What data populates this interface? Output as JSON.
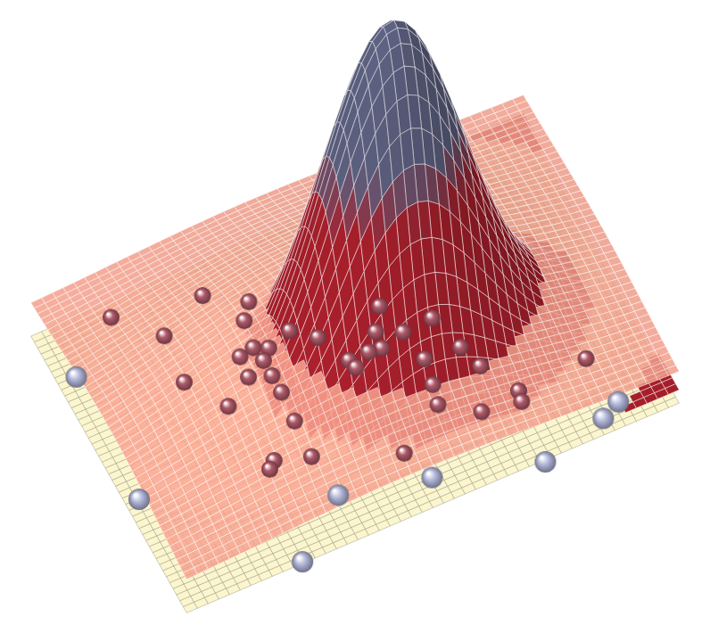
{
  "chart_data": {
    "type": "surface3d",
    "xlim": [
      -1,
      1
    ],
    "ylim": [
      -1,
      1
    ],
    "grid": true,
    "tick_labels": false,
    "surfaces": [
      {
        "color": "#fdf7cf",
        "offset": -0.04,
        "height": 0.04,
        "center": [
          0.3,
          0.3
        ],
        "spread": 0.5
      },
      {
        "color": "#f4a08c",
        "offset": 0.05,
        "height": 0.2,
        "center": [
          -0.1,
          0
        ],
        "spread": 0.55
      },
      {
        "color": "#5b5f7e",
        "offset": 0,
        "height": 1.0,
        "center": [
          0.12,
          -0.1
        ],
        "spread": 0.28
      }
    ],
    "series": [
      {
        "color": "#b05a6a",
        "marker": "sphere",
        "x": [
          -0.82,
          -0.48,
          -0.34,
          -0.68,
          -0.39,
          -0.26,
          -0.18,
          0.08,
          0.23,
          0.02,
          0.11,
          0.01,
          -0.04,
          -0.12,
          -0.11,
          -0.47,
          -0.41,
          -0.36,
          -0.4,
          -0.48,
          -0.4,
          -0.4,
          -0.6,
          -0.7,
          0.13,
          0.27,
          0.3,
          0.11,
          0.09,
          0.22,
          0.38,
          0.37,
          0.66,
          -0.41,
          -0.55,
          -0.42,
          -0.58,
          -0.11
        ],
        "y": [
          0.54,
          0.44,
          0.29,
          0.3,
          0.19,
          0.02,
          -0.09,
          -0.06,
          -0.26,
          -0.2,
          -0.27,
          -0.31,
          -0.3,
          -0.3,
          -0.36,
          -0.01,
          0.01,
          -0.03,
          -0.09,
          -0.15,
          -0.2,
          -0.32,
          -0.27,
          -0.02,
          -0.48,
          -0.5,
          -0.66,
          -0.65,
          -0.78,
          -0.93,
          -0.9,
          -0.97,
          -0.88,
          -0.52,
          -0.7,
          -0.77,
          -0.74,
          -0.98
        ],
        "z": [
          0.15,
          0.15,
          0.15,
          0.15,
          0.15,
          0.15,
          0.15,
          0.15,
          0.15,
          0.15,
          0.15,
          0.15,
          0.15,
          0.15,
          0.15,
          0.15,
          0.15,
          0.15,
          0.15,
          0.15,
          0.15,
          0.15,
          0.15,
          0.15,
          0.15,
          0.15,
          0.15,
          0.15,
          0.15,
          0.15,
          0.15,
          0.15,
          0.15,
          0.15,
          0.15,
          0.15,
          0.15,
          0.15
        ]
      },
      {
        "color": "#b8bde0",
        "marker": "sphere",
        "x": [
          -0.92,
          -0.94,
          -0.52,
          -0.28,
          0.06,
          0.46,
          0.73,
          0.81
        ],
        "y": [
          0.67,
          -0.2,
          -0.97,
          -0.67,
          -0.8,
          -0.99,
          -0.88,
          -0.82
        ],
        "z": [
          -0.05,
          -0.05,
          -0.05,
          -0.05,
          -0.05,
          -0.05,
          -0.05,
          -0.05
        ]
      }
    ]
  }
}
